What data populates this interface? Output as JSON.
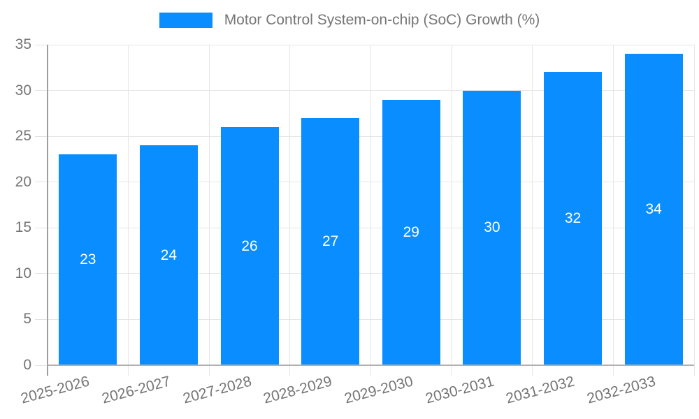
{
  "chart_data": {
    "type": "bar",
    "title": "",
    "legend_position": "top",
    "legend_entries": [
      "Motor Control System-on-chip (SoC) Growth (%)"
    ],
    "categories": [
      "2025-2026",
      "2026-2027",
      "2027-2028",
      "2028-2029",
      "2029-2030",
      "2030-2031",
      "2031-2032",
      "2032-2033"
    ],
    "series": [
      {
        "name": "Motor Control System-on-chip (SoC) Growth (%)",
        "values": [
          23,
          24,
          26,
          27,
          29,
          30,
          32,
          34
        ]
      }
    ],
    "xlabel": "",
    "ylabel": "",
    "ylim": [
      0,
      35
    ],
    "yticks": [
      0,
      5,
      10,
      15,
      20,
      25,
      30,
      35
    ],
    "grid": true,
    "bar_labels_shown_inside_bars": true
  },
  "legend": {
    "label": "Motor Control System-on-chip (SoC) Growth (%)"
  },
  "colors": {
    "bar": "#0a8dff",
    "grid": "#e6e6e6",
    "y_axis": "#9e9e9e",
    "baseline": "#b0b0b0",
    "tick_text": "#757575",
    "bar_value_text": "#ffffff",
    "background": "#ffffff"
  }
}
